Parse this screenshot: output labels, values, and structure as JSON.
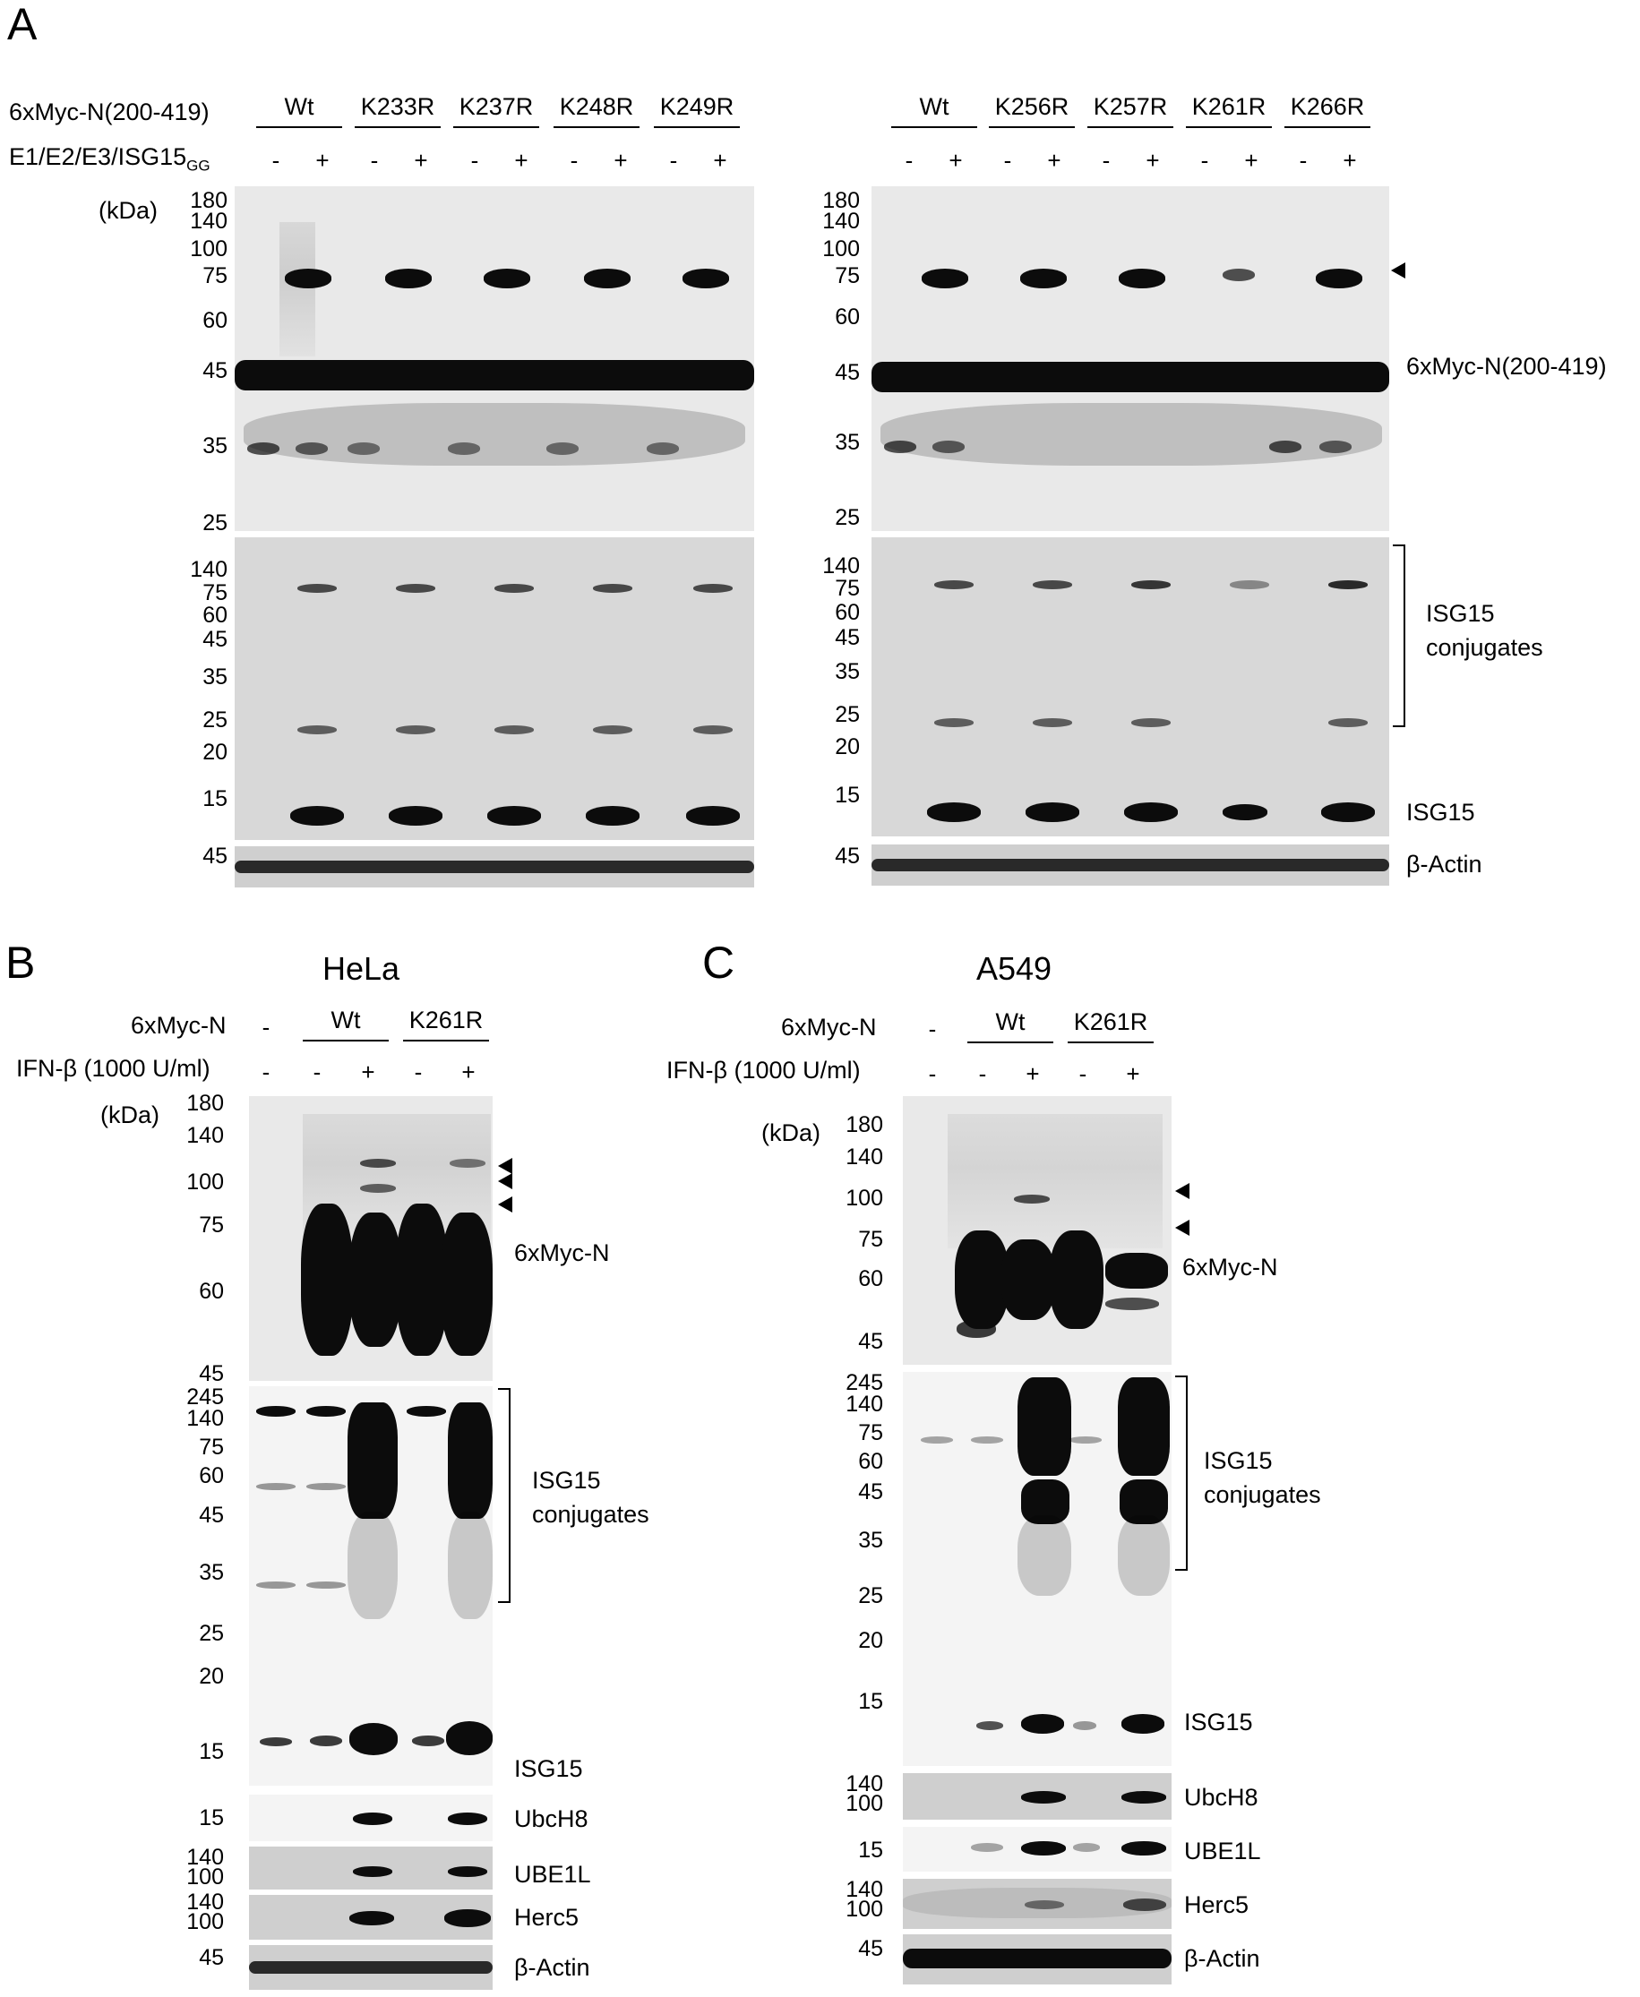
{
  "panels": {
    "A": "A",
    "B": "B",
    "C": "C"
  },
  "A": {
    "row1_label": "6xMyc-N(200-419)",
    "row2_label": "E1/E2/E3/ISG15",
    "row2_sub": "GG",
    "kda": "(kDa)",
    "left_groups": [
      "Wt",
      "K233R",
      "K237R",
      "K248R",
      "K249R"
    ],
    "right_groups": [
      "Wt",
      "K256R",
      "K257R",
      "K261R",
      "K266R"
    ],
    "signs": [
      "-",
      "+",
      "-",
      "+",
      "-",
      "+",
      "-",
      "+",
      "-",
      "+"
    ],
    "mw_top_left": [
      "180",
      "140",
      "100",
      "75",
      "60",
      "45",
      "35",
      "25"
    ],
    "mw_top_right": [
      "180",
      "140",
      "100",
      "75",
      "60",
      "45",
      "35",
      "25"
    ],
    "mw_mid": [
      "140",
      "75",
      "60",
      "45",
      "35",
      "25",
      "20",
      "15"
    ],
    "mw_actin": "45",
    "right_labels": {
      "myc": "6xMyc-N(200-419)",
      "conj1": "ISG15",
      "conj2": "conjugates",
      "isg15": "ISG15",
      "actin": "β-Actin"
    }
  },
  "B": {
    "title": "HeLa",
    "row1_label": "6xMyc-N",
    "row2_label": "IFN-β (1000 U/ml)",
    "kda": "(kDa)",
    "dash": "-",
    "groups": [
      "Wt",
      "K261R"
    ],
    "signs": [
      "-",
      "-",
      "+",
      "-",
      "+"
    ],
    "mw_top": [
      "180",
      "140",
      "100",
      "75",
      "60",
      "45"
    ],
    "mw_mid": [
      "245",
      "140",
      "75",
      "60",
      "45",
      "35",
      "25",
      "20",
      "15"
    ],
    "mw_ubch8": "15",
    "mw_ube1l": [
      "140",
      "100"
    ],
    "mw_herc5": [
      "140",
      "100"
    ],
    "mw_actin": "45",
    "labels": {
      "myc": "6xMyc-N",
      "conj1": "ISG15",
      "conj2": "conjugates",
      "isg15": "ISG15",
      "ubch8": "UbcH8",
      "ube1l": "UBE1L",
      "herc5": "Herc5",
      "actin": "β-Actin"
    }
  },
  "C": {
    "title": "A549",
    "row1_label": "6xMyc-N",
    "row2_label": "IFN-β (1000 U/ml)",
    "kda": "(kDa)",
    "dash": "-",
    "groups": [
      "Wt",
      "K261R"
    ],
    "signs": [
      "-",
      "-",
      "+",
      "-",
      "+"
    ],
    "mw_top": [
      "180",
      "140",
      "100",
      "75",
      "60",
      "45"
    ],
    "mw_mid": [
      "245",
      "140",
      "75",
      "60",
      "45",
      "35",
      "25",
      "20",
      "15"
    ],
    "mw_ubch8": [
      "140",
      "100"
    ],
    "mw_ube1l": "15",
    "mw_herc5": [
      "140",
      "100"
    ],
    "mw_actin": "45",
    "labels": {
      "myc": "6xMyc-N",
      "conj1": "ISG15",
      "conj2": "conjugates",
      "isg15": "ISG15",
      "ubch8": "UbcH8",
      "ube1l": "UBE1L",
      "herc5": "Herc5",
      "actin": "β-Actin"
    }
  }
}
